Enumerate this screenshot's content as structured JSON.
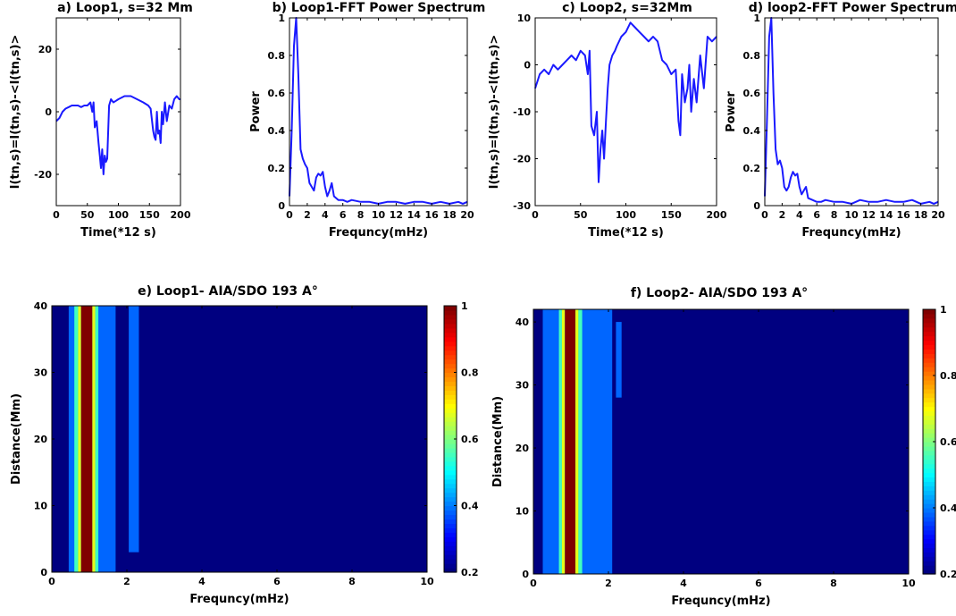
{
  "chart_data": [
    {
      "id": "a",
      "type": "line",
      "title": "a) Loop1, s=32 Mm",
      "xlabel": "Time(*12 s)",
      "ylabel": "I(tn,s)=I(tn,s)-<I(tn,s)>",
      "xlim": [
        0,
        200
      ],
      "ylim": [
        -30,
        30
      ],
      "xticks": [
        0,
        50,
        100,
        150,
        200
      ],
      "yticks": [
        -20,
        0,
        20
      ],
      "color": "#1a1aff",
      "series": [
        {
          "x": [
            0,
            5,
            10,
            15,
            20,
            25,
            30,
            35,
            40,
            45,
            50,
            55,
            58,
            60,
            62,
            65,
            68,
            70,
            72,
            74,
            76,
            78,
            80,
            82,
            85,
            88,
            92,
            96,
            100,
            110,
            120,
            130,
            140,
            148,
            152,
            156,
            158,
            160,
            162,
            164,
            166,
            168,
            170,
            172,
            175,
            178,
            182,
            186,
            190,
            194,
            198,
            200
          ],
          "y": [
            -3,
            -2,
            0,
            1,
            1.5,
            2,
            2,
            2,
            1.5,
            2,
            2,
            3,
            0,
            3,
            -5,
            -3,
            -10,
            -14,
            -18,
            -12,
            -20,
            -14,
            -16,
            -15,
            2,
            4,
            3,
            3.5,
            4,
            5,
            5,
            4,
            3,
            2,
            1,
            -6,
            -8,
            -9,
            0,
            -7,
            -6,
            -10,
            0,
            -4,
            3,
            -3,
            2,
            1,
            4,
            5,
            4,
            4
          ]
        }
      ]
    },
    {
      "id": "b",
      "type": "line",
      "title": "b) Loop1-FFT Power Spectrum",
      "xlabel": "Frequncy(mHz)",
      "ylabel": "Power",
      "xlim": [
        0,
        20
      ],
      "ylim": [
        0,
        1
      ],
      "xticks": [
        0,
        2,
        4,
        6,
        8,
        10,
        12,
        14,
        16,
        18,
        20
      ],
      "yticks": [
        0,
        0.2,
        0.4,
        0.6,
        0.8,
        1
      ],
      "color": "#1a1aff",
      "series": [
        {
          "x": [
            0,
            0.25,
            0.5,
            0.75,
            1,
            1.25,
            1.5,
            1.75,
            2,
            2.25,
            2.5,
            2.75,
            3,
            3.25,
            3.5,
            3.75,
            4,
            4.25,
            4.5,
            4.75,
            5,
            5.5,
            6,
            6.5,
            7,
            8,
            9,
            10,
            11,
            12,
            13,
            14,
            15,
            16,
            17,
            18,
            19,
            19.5,
            20
          ],
          "y": [
            0.05,
            0.4,
            0.85,
            1.0,
            0.7,
            0.3,
            0.25,
            0.22,
            0.2,
            0.12,
            0.1,
            0.08,
            0.15,
            0.17,
            0.16,
            0.18,
            0.1,
            0.05,
            0.08,
            0.12,
            0.05,
            0.03,
            0.03,
            0.02,
            0.03,
            0.02,
            0.02,
            0.01,
            0.02,
            0.02,
            0.01,
            0.02,
            0.02,
            0.01,
            0.02,
            0.01,
            0.02,
            0.01,
            0.02
          ]
        }
      ]
    },
    {
      "id": "c",
      "type": "line",
      "title": "c) Loop2, s=32Mm",
      "xlabel": "Time(*12 s)",
      "ylabel": "I(tn,s)=I(tn,s)-<I(tn,s)>",
      "xlim": [
        0,
        200
      ],
      "ylim": [
        -30,
        10
      ],
      "xticks": [
        0,
        50,
        100,
        150,
        200
      ],
      "yticks": [
        -30,
        -20,
        -10,
        0,
        10
      ],
      "color": "#1a1aff",
      "series": [
        {
          "x": [
            0,
            5,
            10,
            15,
            20,
            25,
            30,
            35,
            40,
            45,
            50,
            55,
            58,
            60,
            62,
            65,
            68,
            70,
            72,
            74,
            76,
            78,
            80,
            82,
            85,
            88,
            90,
            95,
            100,
            105,
            110,
            115,
            120,
            125,
            130,
            135,
            140,
            145,
            150,
            155,
            158,
            160,
            162,
            165,
            168,
            170,
            172,
            175,
            178,
            182,
            186,
            190,
            195,
            200
          ],
          "y": [
            -5,
            -2,
            -1,
            -2,
            0,
            -1,
            0,
            1,
            2,
            1,
            3,
            2,
            -2,
            3,
            -13,
            -15,
            -10,
            -25,
            -18,
            -14,
            -20,
            -12,
            -5,
            0,
            2,
            3,
            4,
            6,
            7,
            9,
            8,
            7,
            6,
            5,
            6,
            5,
            1,
            0,
            -2,
            -1,
            -12,
            -15,
            -2,
            -8,
            -5,
            0,
            -10,
            -3,
            -8,
            2,
            -5,
            6,
            5,
            6
          ]
        }
      ]
    },
    {
      "id": "d",
      "type": "line",
      "title": "d) loop2-FFT Power Spectrum",
      "xlabel": "Frequncy(mHz)",
      "ylabel": "Power",
      "xlim": [
        0,
        20
      ],
      "ylim": [
        0,
        1
      ],
      "xticks": [
        0,
        2,
        4,
        6,
        8,
        10,
        12,
        14,
        16,
        18,
        20
      ],
      "yticks": [
        0,
        0.2,
        0.4,
        0.6,
        0.8,
        1
      ],
      "color": "#1a1aff",
      "series": [
        {
          "x": [
            0,
            0.25,
            0.5,
            0.75,
            1,
            1.25,
            1.5,
            1.75,
            2,
            2.25,
            2.5,
            2.75,
            3,
            3.25,
            3.5,
            3.75,
            4,
            4.25,
            4.5,
            4.75,
            5,
            5.5,
            6,
            6.5,
            7,
            8,
            9,
            10,
            11,
            12,
            13,
            14,
            15,
            16,
            17,
            18,
            19,
            19.5,
            20
          ],
          "y": [
            0.05,
            0.45,
            0.9,
            1.0,
            0.6,
            0.3,
            0.22,
            0.24,
            0.2,
            0.1,
            0.08,
            0.1,
            0.15,
            0.18,
            0.16,
            0.17,
            0.1,
            0.06,
            0.08,
            0.1,
            0.04,
            0.03,
            0.02,
            0.02,
            0.03,
            0.02,
            0.02,
            0.01,
            0.03,
            0.02,
            0.02,
            0.03,
            0.02,
            0.02,
            0.03,
            0.01,
            0.02,
            0.01,
            0.02
          ]
        }
      ]
    },
    {
      "id": "e",
      "type": "heatmap",
      "title": "e) Loop1- AIA/SDO 193 A°",
      "xlabel": "Frequncy(mHz)",
      "ylabel": "Distance(Mm)",
      "xlim": [
        0,
        10
      ],
      "ylim": [
        0,
        40
      ],
      "xticks": [
        0,
        2,
        4,
        6,
        8,
        10
      ],
      "yticks": [
        0,
        10,
        20,
        30,
        40
      ],
      "colorbar": {
        "min": 0.2,
        "max": 1,
        "ticks": [
          0.2,
          0.4,
          0.6,
          0.8,
          1
        ]
      },
      "background": 0.2,
      "bands": [
        {
          "x0": 0.45,
          "x1": 1.7,
          "value": 0.38
        },
        {
          "x0": 0.6,
          "x1": 0.7,
          "value": 0.55
        },
        {
          "x0": 0.7,
          "x1": 0.78,
          "value": 0.68
        },
        {
          "x0": 0.78,
          "x1": 1.08,
          "value": 1.0
        },
        {
          "x0": 1.08,
          "x1": 1.16,
          "value": 0.68
        },
        {
          "x0": 1.16,
          "x1": 1.24,
          "value": 0.55
        },
        {
          "x0": 2.05,
          "x1": 2.32,
          "value": 0.38,
          "y0": 3,
          "y1": 40
        }
      ]
    },
    {
      "id": "f",
      "type": "heatmap",
      "title": "f) Loop2- AIA/SDO 193 A°",
      "xlabel": "Frequncy(mHz)",
      "ylabel": "Distance(Mm)",
      "xlim": [
        0,
        10
      ],
      "ylim": [
        0,
        42
      ],
      "xticks": [
        0,
        2,
        4,
        6,
        8,
        10
      ],
      "yticks": [
        0,
        10,
        20,
        30,
        40
      ],
      "colorbar": {
        "min": 0.2,
        "max": 1,
        "ticks": [
          0.2,
          0.4,
          0.6,
          0.8,
          1
        ]
      },
      "background": 0.2,
      "bands": [
        {
          "x0": 0.25,
          "x1": 2.1,
          "value": 0.38
        },
        {
          "x0": 0.68,
          "x1": 0.76,
          "value": 0.55
        },
        {
          "x0": 0.76,
          "x1": 0.84,
          "value": 0.68
        },
        {
          "x0": 0.84,
          "x1": 1.12,
          "value": 1.0
        },
        {
          "x0": 1.12,
          "x1": 1.2,
          "value": 0.68
        },
        {
          "x0": 1.2,
          "x1": 1.3,
          "value": 0.55
        },
        {
          "x0": 2.2,
          "x1": 2.35,
          "value": 0.38,
          "y0": 28,
          "y1": 40
        }
      ]
    }
  ]
}
